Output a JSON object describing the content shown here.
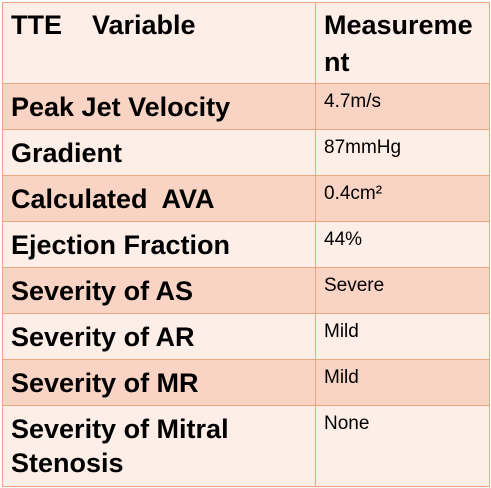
{
  "header": {
    "col1_label": "TTE    Variable",
    "col2_label": "Measurement"
  },
  "rows": [
    {
      "variable": "Peak Jet Velocity",
      "measurement": "4.7m/s"
    },
    {
      "variable": "Gradient",
      "measurement": "87mmHg"
    },
    {
      "variable": "Calculated  AVA",
      "measurement": "0.4cm²"
    },
    {
      "variable": "Ejection Fraction",
      "measurement": "44%"
    },
    {
      "variable": "Severity of AS",
      "measurement": "Severe"
    },
    {
      "variable": "Severity of AR",
      "measurement": "Mild"
    },
    {
      "variable": "Severity of MR",
      "measurement": "Mild"
    },
    {
      "variable": "Severity of Mitral Stenosis",
      "measurement": "None"
    }
  ],
  "colors": {
    "border": "#f0a47f",
    "light_row": "#fdeee7",
    "dark_row": "#f9d3c3"
  }
}
